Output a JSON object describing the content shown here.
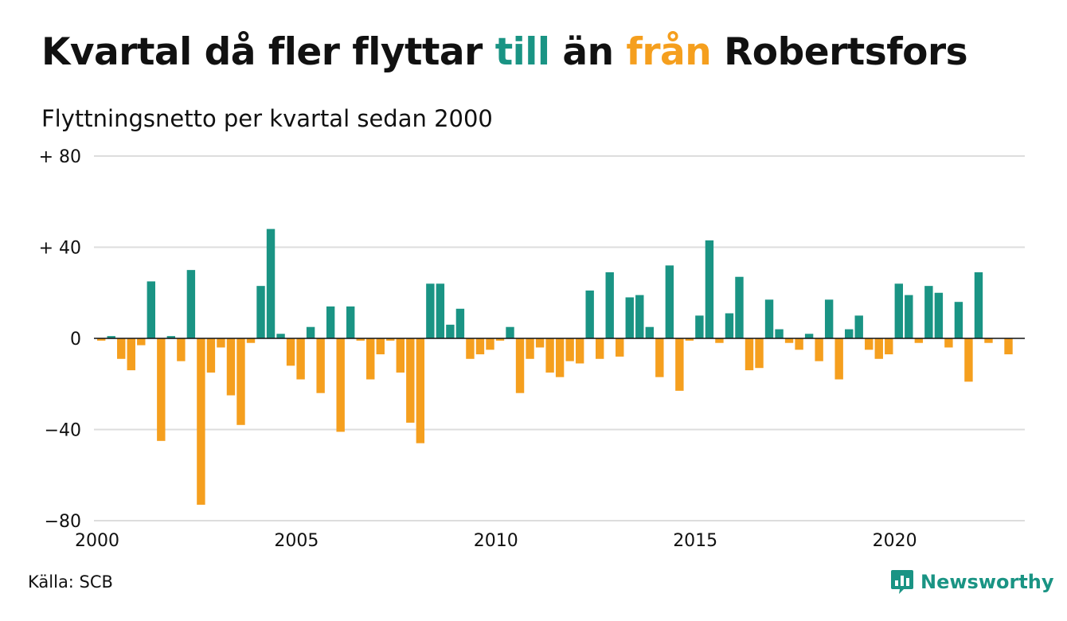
{
  "header": {
    "title_part1": "Kvartal då fler flyttar ",
    "title_till": "till",
    "title_part2": " än ",
    "title_fran": "från",
    "title_part3": " Robertsfors",
    "subtitle": "Flyttningsnetto per kvartal sedan 2000"
  },
  "footer": {
    "source": "Källa: SCB",
    "brand": "Newsworthy"
  },
  "colors": {
    "positive": "#1a9484",
    "negative": "#f59f1e",
    "grid": "#dddddd",
    "zero_line": "#111111",
    "brand": "#1a9484"
  },
  "chart_data": {
    "type": "bar",
    "x_start": "2000 Q1",
    "x_step": "quarter",
    "ylim": [
      -80,
      80
    ],
    "yticks": [
      {
        "value": 80,
        "label": "+ 80"
      },
      {
        "value": 40,
        "label": "+ 40"
      },
      {
        "value": 0,
        "label": "0"
      },
      {
        "value": -40,
        "label": "−40"
      },
      {
        "value": -80,
        "label": "−80"
      }
    ],
    "xticks": [
      "2000",
      "2005",
      "2010",
      "2015",
      "2020"
    ],
    "grid": true,
    "values": [
      -1,
      1,
      -9,
      -14,
      -3,
      25,
      -45,
      1,
      -10,
      30,
      -73,
      -15,
      -4,
      -25,
      -38,
      -2,
      23,
      48,
      2,
      -12,
      -18,
      5,
      -24,
      14,
      -41,
      14,
      -1,
      -18,
      -7,
      -1,
      -15,
      -37,
      -46,
      24,
      24,
      6,
      13,
      -9,
      -7,
      -5,
      -1,
      5,
      -24,
      -9,
      -4,
      -15,
      -17,
      -10,
      -11,
      21,
      -9,
      29,
      -8,
      18,
      19,
      5,
      -17,
      32,
      -23,
      -1,
      10,
      43,
      -2,
      11,
      27,
      -14,
      -13,
      17,
      4,
      -2,
      -5,
      2,
      -10,
      17,
      -18,
      4,
      10,
      -5,
      -9,
      -7,
      24,
      19,
      -2,
      23,
      20,
      -4,
      16,
      -19,
      29,
      -2,
      0,
      -7
    ]
  }
}
